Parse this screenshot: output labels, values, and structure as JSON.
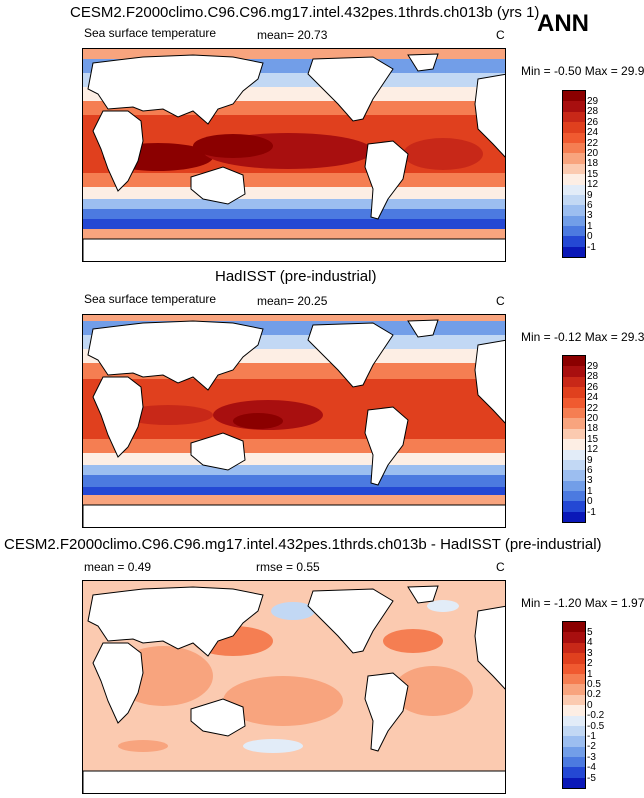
{
  "header": {
    "annual_label": "ANN"
  },
  "panels": [
    {
      "title": "CESM2.F2000climo.C96.C96.mg17.intel.432pes.1thrds.ch013b (yrs 1)",
      "variable": "Sea surface temperature",
      "mean": "mean=  20.73",
      "units": "C",
      "minmax": "Min =  -0.50 Max =  29.92",
      "colorbar": {
        "labels": [
          "29",
          "28",
          "26",
          "24",
          "22",
          "20",
          "18",
          "15",
          "12",
          "9",
          "6",
          "3",
          "1",
          "0",
          "-1"
        ],
        "colors": [
          "#8b0000",
          "#a80f0f",
          "#c82818",
          "#e0401e",
          "#f05a30",
          "#f57e52",
          "#f8a47e",
          "#fbcab0",
          "#fdeee4",
          "#e2ecf8",
          "#c2d8f4",
          "#9cbef0",
          "#729ee8",
          "#4c7ae0",
          "#2448d4",
          "#0a18b8"
        ]
      }
    },
    {
      "title": "HadISST (pre-industrial)",
      "variable": "Sea surface temperature",
      "mean": "mean=  20.25",
      "units": "C",
      "minmax": "Min =  -0.12 Max =  29.34",
      "colorbar": {
        "labels": [
          "29",
          "28",
          "26",
          "24",
          "22",
          "20",
          "18",
          "15",
          "12",
          "9",
          "6",
          "3",
          "1",
          "0",
          "-1"
        ],
        "colors": [
          "#8b0000",
          "#a80f0f",
          "#c82818",
          "#e0401e",
          "#f05a30",
          "#f57e52",
          "#f8a47e",
          "#fbcab0",
          "#fdeee4",
          "#e2ecf8",
          "#c2d8f4",
          "#9cbef0",
          "#729ee8",
          "#4c7ae0",
          "#2448d4",
          "#0a18b8"
        ]
      }
    },
    {
      "title": "CESM2.F2000climo.C96.C96.mg17.intel.432pes.1thrds.ch013b - HadISST (pre-industrial)",
      "mean": "mean =   0.49",
      "rmse": "rmse =   0.55",
      "units": "C",
      "minmax": "Min =  -1.20 Max =   1.97",
      "colorbar": {
        "labels": [
          "5",
          "4",
          "3",
          "2",
          "1",
          "0.5",
          "0.2",
          "0",
          "-0.2",
          "-0.5",
          "-1",
          "-2",
          "-3",
          "-4",
          "-5"
        ],
        "colors": [
          "#8b0000",
          "#a80f0f",
          "#c82818",
          "#e0401e",
          "#f05a30",
          "#f57e52",
          "#f8a47e",
          "#fbcab0",
          "#fdeee4",
          "#e2ecf8",
          "#c2d8f4",
          "#9cbef0",
          "#729ee8",
          "#4c7ae0",
          "#2448d4",
          "#0a18b8"
        ]
      }
    }
  ],
  "chart_data": [
    {
      "type": "heatmap",
      "title": "CESM2.F2000climo.C96.C96.mg17.intel.432pes.1thrds.ch013b (yrs 1)",
      "variable": "Sea surface temperature",
      "units": "C",
      "mean": 20.73,
      "min": -0.5,
      "max": 29.92,
      "contour_levels": [
        -1,
        0,
        1,
        3,
        6,
        9,
        12,
        15,
        18,
        20,
        22,
        24,
        26,
        28,
        29
      ]
    },
    {
      "type": "heatmap",
      "title": "HadISST (pre-industrial)",
      "variable": "Sea surface temperature",
      "units": "C",
      "mean": 20.25,
      "min": -0.12,
      "max": 29.34,
      "contour_levels": [
        -1,
        0,
        1,
        3,
        6,
        9,
        12,
        15,
        18,
        20,
        22,
        24,
        26,
        28,
        29
      ]
    },
    {
      "type": "heatmap",
      "title": "CESM2.F2000climo.C96.C96.mg17.intel.432pes.1thrds.ch013b - HadISST (pre-industrial)",
      "units": "C",
      "mean": 0.49,
      "rmse": 0.55,
      "min": -1.2,
      "max": 1.97,
      "contour_levels": [
        -5,
        -4,
        -3,
        -2,
        -1,
        -0.5,
        -0.2,
        0,
        0.2,
        0.5,
        1,
        2,
        3,
        4,
        5
      ]
    }
  ]
}
